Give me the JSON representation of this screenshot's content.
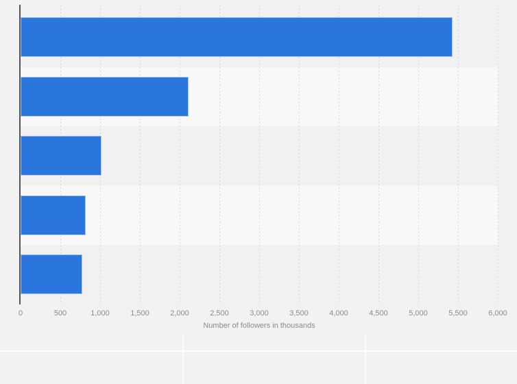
{
  "page": {
    "background_color": "#f2f2f3",
    "row_band_light": "#f8f8f9",
    "row_band_dark": "#f1f1f2",
    "gridline_color": "#d5d5d8",
    "axis_line_color": "#515458",
    "tick_text_color": "#8a8b8e"
  },
  "chart_data": {
    "type": "bar",
    "orientation": "horizontal",
    "title": "",
    "xlabel": "Number of followers in thousands",
    "ylabel": "",
    "xlim": [
      0,
      6000
    ],
    "x_tick_step": 500,
    "x_tick_labels": [
      "0",
      "500",
      "1,000",
      "1,500",
      "2,000",
      "2,500",
      "3,000",
      "3,500",
      "4,000",
      "4,500",
      "5,000",
      "5,500",
      "6,000"
    ],
    "category_labels_visible": false,
    "values": [
      5430,
      2115,
      1020,
      820,
      775
    ],
    "bar_color": "#2b76dc",
    "bar_border_color": "#aac6ef",
    "grid": "vertical-dashed",
    "legend_position": "none"
  }
}
